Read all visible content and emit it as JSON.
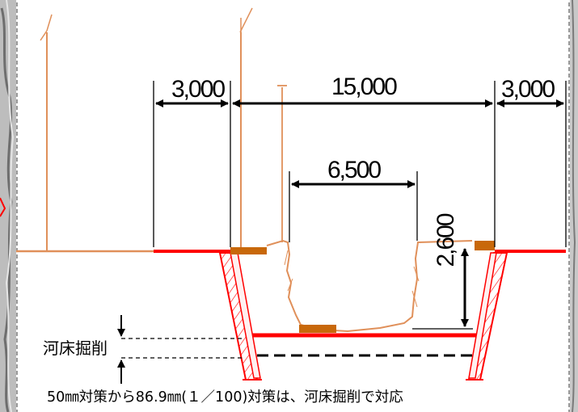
{
  "dimensions": {
    "left_berm": "3,000",
    "top_width": "15,000",
    "right_berm": "3,000",
    "channel_bottom_width": "6,500",
    "depth": "2,600"
  },
  "labels": {
    "riverbed_excavation": "河床掘削",
    "caption": "50㎜対策から86.9㎜(１／100)対策は、河床掘削で対応"
  },
  "colors": {
    "existing_section": "#e0905a",
    "new_section": "#ff0000",
    "revetment_block": "#c8680a",
    "dimension_lines": "#000000",
    "frame_border": "#9a9a9a"
  }
}
